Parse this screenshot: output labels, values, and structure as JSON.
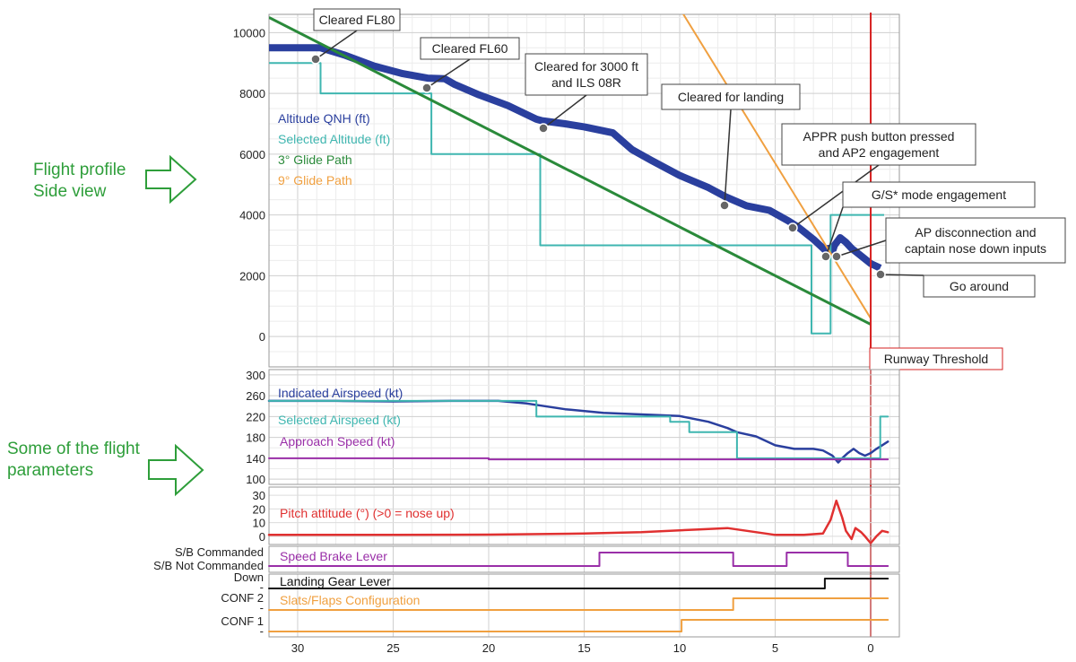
{
  "side_labels": {
    "profile": [
      "Flight profile",
      "Side view"
    ],
    "params": [
      "Some of the flight",
      "parameters"
    ]
  },
  "colors": {
    "altitude": "#2a3f9e",
    "selected": "#3fb6b0",
    "glide3": "#2a8a3a",
    "glide9": "#f0a040",
    "pitch": "#e03030",
    "approach": "#9a2fa8",
    "runway": "#d62020",
    "gear": "#111111",
    "flaps": "#f0a040",
    "arrow": "#2e9e3a"
  },
  "chart_data": [
    {
      "type": "line",
      "panel": "flight-profile",
      "x_axis": {
        "label": "",
        "range": [
          31.5,
          -1.5
        ],
        "reversed": true,
        "ticks": [
          30,
          25,
          20,
          15,
          10,
          5,
          0
        ]
      },
      "y_axis": {
        "range": [
          -1000,
          10600
        ],
        "ticks": [
          0,
          2000,
          4000,
          6000,
          8000,
          10000
        ]
      },
      "grid": true,
      "legend_position": "left",
      "series": [
        {
          "name": "Altitude QNH (ft)",
          "color": "#2a3f9e",
          "points": [
            [
              31.5,
              9500
            ],
            [
              29.5,
              9500
            ],
            [
              28.8,
              9500
            ],
            [
              27.5,
              9250
            ],
            [
              26,
              8900
            ],
            [
              24.5,
              8650
            ],
            [
              23.2,
              8500
            ],
            [
              22.3,
              8480
            ],
            [
              21.8,
              8300
            ],
            [
              20.5,
              7950
            ],
            [
              19,
              7600
            ],
            [
              17.5,
              7150
            ],
            [
              17.2,
              7100
            ],
            [
              16,
              7000
            ],
            [
              15,
              6900
            ],
            [
              13.5,
              6700
            ],
            [
              12.5,
              6150
            ],
            [
              11.5,
              5800
            ],
            [
              10,
              5300
            ],
            [
              8.5,
              4900
            ],
            [
              7.6,
              4600
            ],
            [
              6.5,
              4300
            ],
            [
              5.3,
              4150
            ],
            [
              4.3,
              3800
            ],
            [
              3.8,
              3600
            ],
            [
              3.0,
              3200
            ],
            [
              2.4,
              2850
            ],
            [
              2.2,
              2900
            ],
            [
              2.0,
              2800
            ],
            [
              1.9,
              3000
            ],
            [
              1.6,
              3250
            ],
            [
              1.3,
              3100
            ],
            [
              1.0,
              2900
            ],
            [
              0.6,
              2700
            ],
            [
              0.3,
              2550
            ],
            [
              0.0,
              2400
            ],
            [
              -0.5,
              2250
            ]
          ]
        },
        {
          "name": "Selected Altitude (ft)",
          "color": "#3fb6b0",
          "points": [
            [
              31.5,
              9000
            ],
            [
              28.8,
              9000
            ],
            [
              28.8,
              8000
            ],
            [
              23.0,
              8000
            ],
            [
              23.0,
              6000
            ],
            [
              17.3,
              6000
            ],
            [
              17.3,
              3000
            ],
            [
              3.1,
              3000
            ],
            [
              3.1,
              100
            ],
            [
              2.1,
              100
            ],
            [
              2.1,
              4000
            ],
            [
              0,
              4000
            ],
            [
              -0.7,
              4000
            ]
          ]
        },
        {
          "name": "3° Glide Path",
          "color": "#2a8a3a",
          "points": [
            [
              31.5,
              10500
            ],
            [
              0,
              400
            ]
          ]
        },
        {
          "name": "9° Glide Path",
          "color": "#f0a040",
          "points": [
            [
              10.2,
              11000
            ],
            [
              0,
              600
            ]
          ]
        }
      ],
      "annotations": [
        {
          "text": [
            "Cleared FL80"
          ],
          "at": [
            28.8,
            9500
          ]
        },
        {
          "text": [
            "Cleared FL60"
          ],
          "at": [
            23.0,
            8480
          ]
        },
        {
          "text": [
            "Cleared for 3000 ft",
            "and ILS 08R"
          ],
          "at": [
            17.3,
            7120
          ]
        },
        {
          "text": [
            "Cleared for landing"
          ],
          "at": [
            7.6,
            4600
          ]
        },
        {
          "text": [
            "APPR push button pressed",
            "and AP2 engagement"
          ],
          "at": [
            4.3,
            3800
          ]
        },
        {
          "text": [
            "G/S* mode engagement"
          ],
          "at": [
            2.3,
            2850
          ]
        },
        {
          "text": [
            "AP disconnection and",
            "captain nose down inputs"
          ],
          "at": [
            1.8,
            2900
          ]
        },
        {
          "text": [
            "Go around"
          ],
          "at": [
            -0.6,
            2250
          ]
        },
        {
          "text": [
            "Runway Threshold"
          ],
          "at": [
            0,
            -600
          ]
        }
      ]
    },
    {
      "type": "line",
      "panel": "airspeed",
      "y_axis": {
        "range": [
          90,
          310
        ],
        "ticks": [
          100,
          140,
          180,
          220,
          260,
          300
        ]
      },
      "series": [
        {
          "name": "Indicated Airspeed (kt)",
          "color": "#2a3f9e",
          "points": [
            [
              31.5,
              250
            ],
            [
              28,
              250
            ],
            [
              25,
              249
            ],
            [
              22,
              250
            ],
            [
              19.5,
              250
            ],
            [
              18,
              245
            ],
            [
              16,
              234
            ],
            [
              14,
              227
            ],
            [
              12,
              224
            ],
            [
              10,
              221
            ],
            [
              8.5,
              210
            ],
            [
              7.5,
              198
            ],
            [
              7,
              190
            ],
            [
              6,
              182
            ],
            [
              5,
              165
            ],
            [
              4,
              158
            ],
            [
              3,
              158
            ],
            [
              2.5,
              155
            ],
            [
              2.0,
              145
            ],
            [
              1.7,
              132
            ],
            [
              1.5,
              140
            ],
            [
              1.2,
              150
            ],
            [
              0.9,
              158
            ],
            [
              0.6,
              150
            ],
            [
              0.3,
              145
            ],
            [
              0,
              150
            ],
            [
              -0.3,
              158
            ],
            [
              -0.6,
              165
            ],
            [
              -0.9,
              172
            ]
          ]
        },
        {
          "name": "Selected Airspeed (kt)",
          "color": "#3fb6b0",
          "points": [
            [
              31.5,
              250
            ],
            [
              17.5,
              250
            ],
            [
              17.5,
              220
            ],
            [
              10.5,
              220
            ],
            [
              10.5,
              210
            ],
            [
              9.5,
              210
            ],
            [
              9.5,
              190
            ],
            [
              7.0,
              190
            ],
            [
              7.0,
              140
            ],
            [
              -0.5,
              140
            ],
            [
              -0.5,
              220
            ],
            [
              -0.9,
              220
            ]
          ]
        },
        {
          "name": "Approach Speed (kt)",
          "color": "#9a2fa8",
          "points": [
            [
              31.5,
              140
            ],
            [
              20,
              140
            ],
            [
              20,
              138
            ],
            [
              -0.9,
              138
            ]
          ]
        }
      ]
    },
    {
      "type": "line",
      "panel": "pitch",
      "y_axis": {
        "range": [
          -6,
          36
        ],
        "ticks": [
          0,
          10,
          20,
          30
        ]
      },
      "series": [
        {
          "name": "Pitch attitude (°) (>0 = nose up)",
          "color": "#e03030",
          "points": [
            [
              31.5,
              1
            ],
            [
              25,
              1
            ],
            [
              20,
              1.2
            ],
            [
              15,
              2
            ],
            [
              12,
              3
            ],
            [
              9,
              5
            ],
            [
              7.5,
              6
            ],
            [
              5,
              1
            ],
            [
              3.5,
              1
            ],
            [
              2.5,
              2
            ],
            [
              2.1,
              12
            ],
            [
              1.8,
              26
            ],
            [
              1.5,
              14
            ],
            [
              1.3,
              4
            ],
            [
              1.0,
              -2
            ],
            [
              0.8,
              6
            ],
            [
              0.5,
              3
            ],
            [
              0.3,
              0
            ],
            [
              0,
              -5
            ],
            [
              -0.3,
              0
            ],
            [
              -0.6,
              4
            ],
            [
              -0.9,
              3
            ]
          ]
        }
      ]
    },
    {
      "type": "line",
      "panel": "speed-brake",
      "y_axis": {
        "tick_labels": [
          "S/B Commanded",
          "S/B Not Commanded"
        ]
      },
      "series": [
        {
          "name": "Speed Brake Lever",
          "color": "#9a2fa8",
          "points": [
            [
              31.5,
              0
            ],
            [
              14.2,
              0
            ],
            [
              14.2,
              1
            ],
            [
              7.2,
              1
            ],
            [
              7.2,
              0
            ],
            [
              4.4,
              0
            ],
            [
              4.4,
              1
            ],
            [
              1.2,
              1
            ],
            [
              1.2,
              0
            ],
            [
              -0.9,
              0
            ]
          ]
        }
      ]
    },
    {
      "type": "line",
      "panel": "gear-flaps",
      "y_axis": {
        "tick_labels": [
          "Down",
          "-",
          "CONF 2",
          "-",
          "CONF 1",
          "-"
        ]
      },
      "series": [
        {
          "name": "Landing Gear Lever",
          "color": "#111111",
          "points": [
            [
              31.5,
              0
            ],
            [
              2.4,
              0
            ],
            [
              2.4,
              1
            ],
            [
              -0.9,
              1
            ]
          ]
        },
        {
          "name": "Slats/Flaps Configuration",
          "color": "#f0a040",
          "points": [
            [
              31.5,
              1
            ],
            [
              7.2,
              1
            ],
            [
              7.2,
              2
            ],
            [
              -0.9,
              2
            ]
          ]
        },
        {
          "name": "",
          "color": "#f0a040",
          "points": [
            [
              31.5,
              0
            ],
            [
              9.9,
              0
            ],
            [
              9.9,
              1
            ],
            [
              -0.9,
              1
            ]
          ]
        }
      ]
    }
  ]
}
